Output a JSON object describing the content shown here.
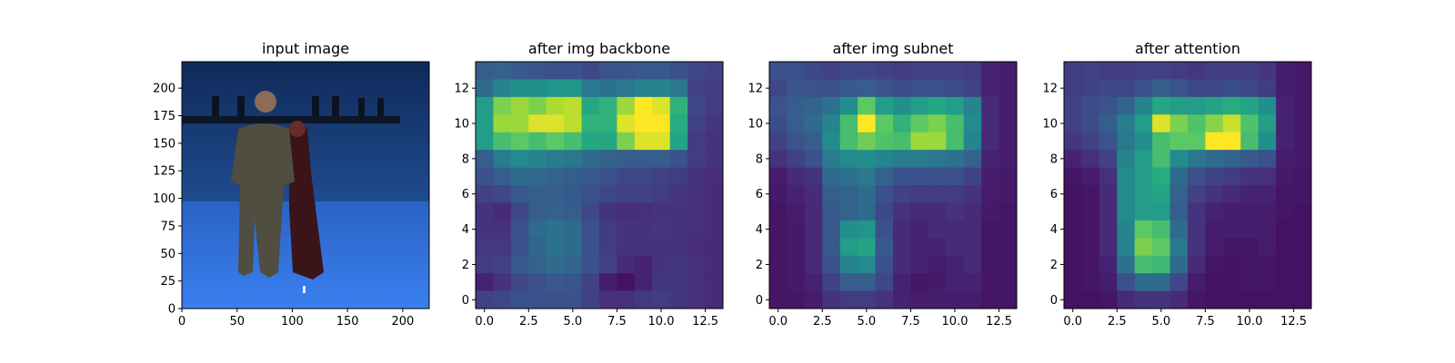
{
  "chart_data": [
    {
      "type": "image",
      "title": "input image",
      "xticks": [
        0,
        50,
        100,
        150,
        200
      ],
      "yticks": [
        0,
        25,
        50,
        75,
        100,
        125,
        150,
        175,
        200
      ],
      "xlim": [
        0,
        224
      ],
      "ylim": [
        224,
        0
      ],
      "colors": {
        "wall": "#1a3f7a",
        "floor": "#2f6fd8",
        "rail": "#0d1626",
        "person_suit": "#4f4e40",
        "person_dress": "#3a1418",
        "skin": "#8a6c58"
      }
    },
    {
      "type": "heatmap",
      "title": "after img backbone",
      "colormap": "viridis",
      "xticks": [
        0.0,
        2.5,
        5.0,
        7.5,
        10.0,
        12.5
      ],
      "xtick_labels": [
        "0.0",
        "2.5",
        "5.0",
        "7.5",
        "10.0",
        "12.5"
      ],
      "yticks": [
        0,
        2,
        4,
        6,
        8,
        10,
        12
      ],
      "xlim": [
        -0.5,
        13.5
      ],
      "ylim": [
        13.5,
        -0.5
      ],
      "values": [
        [
          0.3,
          0.32,
          0.28,
          0.26,
          0.25,
          0.25,
          0.22,
          0.26,
          0.27,
          0.28,
          0.28,
          0.25,
          0.22,
          0.2
        ],
        [
          0.35,
          0.45,
          0.5,
          0.5,
          0.52,
          0.52,
          0.4,
          0.38,
          0.4,
          0.45,
          0.45,
          0.4,
          0.2,
          0.18
        ],
        [
          0.55,
          0.8,
          0.85,
          0.8,
          0.88,
          0.9,
          0.6,
          0.65,
          0.85,
          1.0,
          0.95,
          0.65,
          0.22,
          0.18
        ],
        [
          0.55,
          0.85,
          0.85,
          0.95,
          0.95,
          0.9,
          0.65,
          0.65,
          0.95,
          1.0,
          1.0,
          0.62,
          0.2,
          0.16
        ],
        [
          0.55,
          0.7,
          0.75,
          0.7,
          0.75,
          0.7,
          0.6,
          0.6,
          0.8,
          0.95,
          0.95,
          0.58,
          0.18,
          0.15
        ],
        [
          0.3,
          0.42,
          0.48,
          0.45,
          0.42,
          0.4,
          0.35,
          0.32,
          0.3,
          0.3,
          0.3,
          0.25,
          0.18,
          0.15
        ],
        [
          0.25,
          0.3,
          0.35,
          0.35,
          0.32,
          0.3,
          0.28,
          0.25,
          0.22,
          0.22,
          0.2,
          0.18,
          0.15,
          0.13
        ],
        [
          0.2,
          0.22,
          0.28,
          0.3,
          0.3,
          0.28,
          0.25,
          0.22,
          0.2,
          0.2,
          0.18,
          0.16,
          0.14,
          0.12
        ],
        [
          0.15,
          0.12,
          0.22,
          0.3,
          0.32,
          0.3,
          0.22,
          0.15,
          0.13,
          0.14,
          0.15,
          0.15,
          0.14,
          0.12
        ],
        [
          0.15,
          0.15,
          0.25,
          0.35,
          0.38,
          0.35,
          0.25,
          0.18,
          0.15,
          0.15,
          0.16,
          0.15,
          0.14,
          0.12
        ],
        [
          0.17,
          0.17,
          0.25,
          0.33,
          0.38,
          0.35,
          0.25,
          0.18,
          0.15,
          0.15,
          0.15,
          0.15,
          0.13,
          0.12
        ],
        [
          0.18,
          0.2,
          0.28,
          0.32,
          0.35,
          0.33,
          0.25,
          0.2,
          0.12,
          0.1,
          0.15,
          0.16,
          0.14,
          0.12
        ],
        [
          0.1,
          0.15,
          0.22,
          0.25,
          0.28,
          0.27,
          0.2,
          0.08,
          0.05,
          0.1,
          0.16,
          0.16,
          0.14,
          0.12
        ],
        [
          0.2,
          0.22,
          0.25,
          0.25,
          0.25,
          0.25,
          0.2,
          0.14,
          0.14,
          0.17,
          0.18,
          0.16,
          0.14,
          0.12
        ]
      ]
    },
    {
      "type": "heatmap",
      "title": "after img subnet",
      "colormap": "viridis",
      "xticks": [
        0.0,
        2.5,
        5.0,
        7.5,
        10.0,
        12.5
      ],
      "xtick_labels": [
        "0.0",
        "2.5",
        "5.0",
        "7.5",
        "10.0",
        "12.5"
      ],
      "yticks": [
        0,
        2,
        4,
        6,
        8,
        10,
        12
      ],
      "xlim": [
        -0.5,
        13.5
      ],
      "ylim": [
        13.5,
        -0.5
      ],
      "values": [
        [
          0.25,
          0.25,
          0.22,
          0.2,
          0.22,
          0.22,
          0.2,
          0.18,
          0.2,
          0.2,
          0.2,
          0.18,
          0.1,
          0.08
        ],
        [
          0.22,
          0.26,
          0.26,
          0.25,
          0.28,
          0.3,
          0.26,
          0.24,
          0.25,
          0.25,
          0.23,
          0.2,
          0.1,
          0.08
        ],
        [
          0.26,
          0.3,
          0.32,
          0.38,
          0.5,
          0.75,
          0.55,
          0.5,
          0.55,
          0.6,
          0.55,
          0.45,
          0.12,
          0.08
        ],
        [
          0.24,
          0.3,
          0.35,
          0.45,
          0.7,
          1.0,
          0.75,
          0.65,
          0.75,
          0.8,
          0.7,
          0.48,
          0.12,
          0.08
        ],
        [
          0.2,
          0.26,
          0.3,
          0.48,
          0.7,
          0.78,
          0.72,
          0.7,
          0.85,
          0.85,
          0.7,
          0.45,
          0.12,
          0.08
        ],
        [
          0.15,
          0.2,
          0.25,
          0.42,
          0.48,
          0.5,
          0.45,
          0.42,
          0.42,
          0.4,
          0.38,
          0.32,
          0.1,
          0.08
        ],
        [
          0.08,
          0.12,
          0.15,
          0.35,
          0.38,
          0.4,
          0.32,
          0.25,
          0.25,
          0.25,
          0.25,
          0.2,
          0.08,
          0.07
        ],
        [
          0.07,
          0.1,
          0.12,
          0.3,
          0.32,
          0.35,
          0.25,
          0.2,
          0.18,
          0.18,
          0.18,
          0.15,
          0.08,
          0.07
        ],
        [
          0.06,
          0.08,
          0.12,
          0.28,
          0.32,
          0.35,
          0.22,
          0.15,
          0.12,
          0.12,
          0.15,
          0.12,
          0.07,
          0.06
        ],
        [
          0.06,
          0.07,
          0.12,
          0.28,
          0.5,
          0.52,
          0.25,
          0.12,
          0.1,
          0.12,
          0.12,
          0.12,
          0.06,
          0.06
        ],
        [
          0.06,
          0.07,
          0.12,
          0.28,
          0.55,
          0.58,
          0.28,
          0.12,
          0.1,
          0.1,
          0.12,
          0.12,
          0.06,
          0.06
        ],
        [
          0.06,
          0.07,
          0.12,
          0.25,
          0.45,
          0.48,
          0.25,
          0.12,
          0.1,
          0.08,
          0.1,
          0.12,
          0.06,
          0.06
        ],
        [
          0.06,
          0.07,
          0.1,
          0.2,
          0.3,
          0.3,
          0.22,
          0.1,
          0.06,
          0.07,
          0.1,
          0.1,
          0.06,
          0.06
        ],
        [
          0.06,
          0.06,
          0.08,
          0.15,
          0.18,
          0.18,
          0.15,
          0.1,
          0.08,
          0.08,
          0.08,
          0.08,
          0.06,
          0.06
        ]
      ]
    },
    {
      "type": "heatmap",
      "title": "after attention",
      "colormap": "viridis",
      "xticks": [
        0.0,
        2.5,
        5.0,
        7.5,
        10.0,
        12.5
      ],
      "xtick_labels": [
        "0.0",
        "2.5",
        "5.0",
        "7.5",
        "10.0",
        "12.5"
      ],
      "yticks": [
        0,
        2,
        4,
        6,
        8,
        10,
        12
      ],
      "xlim": [
        -0.5,
        13.5
      ],
      "ylim": [
        13.5,
        -0.5
      ],
      "values": [
        [
          0.18,
          0.2,
          0.18,
          0.18,
          0.2,
          0.2,
          0.18,
          0.16,
          0.18,
          0.18,
          0.18,
          0.16,
          0.08,
          0.07
        ],
        [
          0.18,
          0.2,
          0.22,
          0.22,
          0.25,
          0.3,
          0.26,
          0.22,
          0.22,
          0.24,
          0.22,
          0.18,
          0.08,
          0.07
        ],
        [
          0.2,
          0.24,
          0.26,
          0.32,
          0.45,
          0.6,
          0.55,
          0.55,
          0.58,
          0.62,
          0.58,
          0.5,
          0.1,
          0.07
        ],
        [
          0.2,
          0.24,
          0.3,
          0.42,
          0.55,
          0.95,
          0.8,
          0.72,
          0.82,
          0.92,
          0.72,
          0.55,
          0.1,
          0.07
        ],
        [
          0.16,
          0.2,
          0.26,
          0.4,
          0.5,
          0.7,
          0.75,
          0.75,
          1.0,
          1.0,
          0.7,
          0.5,
          0.1,
          0.07
        ],
        [
          0.1,
          0.14,
          0.2,
          0.45,
          0.55,
          0.7,
          0.48,
          0.4,
          0.35,
          0.32,
          0.28,
          0.25,
          0.08,
          0.07
        ],
        [
          0.06,
          0.08,
          0.14,
          0.48,
          0.55,
          0.62,
          0.35,
          0.25,
          0.2,
          0.18,
          0.15,
          0.14,
          0.07,
          0.06
        ],
        [
          0.05,
          0.06,
          0.12,
          0.48,
          0.55,
          0.58,
          0.32,
          0.2,
          0.15,
          0.12,
          0.1,
          0.1,
          0.06,
          0.06
        ],
        [
          0.05,
          0.06,
          0.12,
          0.48,
          0.55,
          0.55,
          0.3,
          0.15,
          0.1,
          0.08,
          0.08,
          0.08,
          0.06,
          0.05
        ],
        [
          0.05,
          0.06,
          0.12,
          0.45,
          0.75,
          0.7,
          0.35,
          0.15,
          0.08,
          0.08,
          0.08,
          0.08,
          0.05,
          0.05
        ],
        [
          0.05,
          0.06,
          0.12,
          0.45,
          0.8,
          0.75,
          0.4,
          0.15,
          0.08,
          0.06,
          0.06,
          0.08,
          0.05,
          0.05
        ],
        [
          0.05,
          0.06,
          0.1,
          0.38,
          0.7,
          0.68,
          0.35,
          0.12,
          0.06,
          0.05,
          0.06,
          0.06,
          0.05,
          0.05
        ],
        [
          0.05,
          0.06,
          0.08,
          0.25,
          0.35,
          0.35,
          0.22,
          0.08,
          0.05,
          0.05,
          0.06,
          0.06,
          0.05,
          0.05
        ],
        [
          0.05,
          0.05,
          0.06,
          0.12,
          0.15,
          0.15,
          0.12,
          0.06,
          0.05,
          0.05,
          0.05,
          0.05,
          0.05,
          0.05
        ]
      ]
    }
  ]
}
